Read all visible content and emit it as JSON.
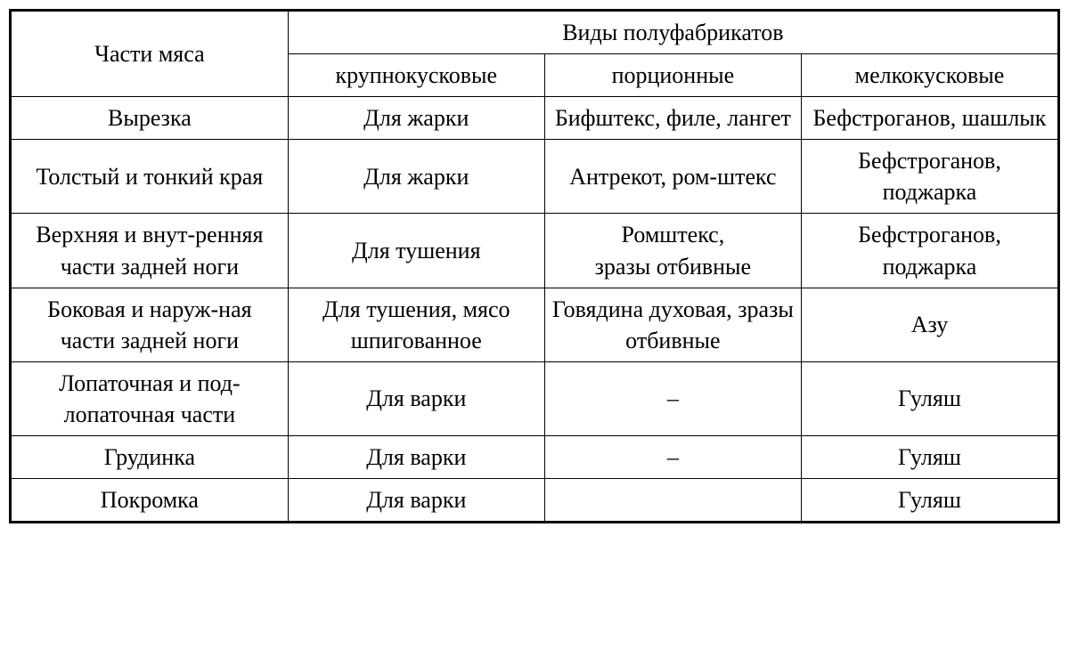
{
  "table": {
    "type": "table",
    "background_color": "#ffffff",
    "border_color": "#000000",
    "text_color": "#000000",
    "font_family": "Times New Roman",
    "font_size_pt": 20,
    "columns": {
      "main_left": "Части мяса",
      "main_right": "Виды полуфабрикатов",
      "sub1": "крупнокусковые",
      "sub2": "порционные",
      "sub3": "мелкокусковые"
    },
    "rows": [
      {
        "parts": "Вырезка",
        "col1": "Для жарки",
        "col2": "Бифштекс, филе, лангет",
        "col3": "Бефстроганов, шашлык"
      },
      {
        "parts": "Толстый и тонкий края",
        "col1": "Для жарки",
        "col2": "Антрекот, ром-штекс",
        "col3": "Бефстроганов, поджарка"
      },
      {
        "parts": "Верхняя и внут-ренняя\nчасти задней ноги",
        "col1": "Для тушения",
        "col2": "Ромштекс,\nзразы отбивные",
        "col3": "Бефстроганов, поджарка"
      },
      {
        "parts": "Боковая и наруж-ная\nчасти задней ноги",
        "col1": "Для тушения, мясо шпигованное",
        "col2": "Говядина духовая, зразы  отбивные",
        "col3": "Азу"
      },
      {
        "parts": "Лопаточная и под-лопаточная части",
        "col1": "Для варки",
        "col2": "–",
        "col3": "Гуляш"
      },
      {
        "parts": "Грудинка",
        "col1": "Для варки",
        "col2": "–",
        "col3": "Гуляш"
      },
      {
        "parts": "Покромка",
        "col1": "Для варки",
        "col2": "",
        "col3": "Гуляш"
      }
    ]
  }
}
